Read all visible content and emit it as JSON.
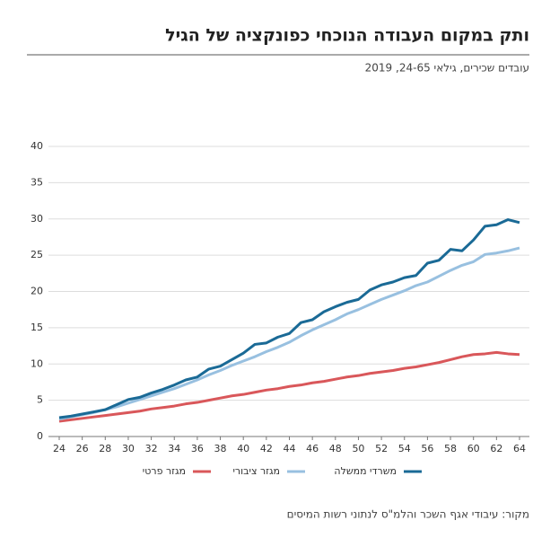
{
  "chart_data": {
    "type": "line",
    "title": "ותק במקום העבודה הנוכחי כפונקציה של הגיל",
    "subtitle": "עובדים שכירים, גילאי 24-65, 2019",
    "source": "מקור: עיבודי אגף השכר והלמ\"ס לנתוני רשות המיסים",
    "x": [
      24,
      25,
      26,
      27,
      28,
      29,
      30,
      31,
      32,
      33,
      34,
      35,
      36,
      37,
      38,
      39,
      40,
      41,
      42,
      43,
      44,
      45,
      46,
      47,
      48,
      49,
      50,
      51,
      52,
      53,
      54,
      55,
      56,
      57,
      58,
      59,
      60,
      61,
      62,
      63,
      64
    ],
    "series": [
      {
        "name": "משרדי ממשלה",
        "color": "#1a6a96",
        "values": [
          2.6,
          2.8,
          3.1,
          3.4,
          3.7,
          4.4,
          5.1,
          5.4,
          6.0,
          6.5,
          7.1,
          7.8,
          8.2,
          9.3,
          9.7,
          10.6,
          11.5,
          12.7,
          12.9,
          13.7,
          14.2,
          15.7,
          16.1,
          17.2,
          17.9,
          18.5,
          18.9,
          20.2,
          20.9,
          21.3,
          21.9,
          22.2,
          23.9,
          24.3,
          25.8,
          25.6,
          27.1,
          29.0,
          29.2,
          29.9,
          29.5
        ]
      },
      {
        "name": "מגזר ציבורי",
        "color": "#98c0e0",
        "values": [
          2.4,
          2.7,
          3.0,
          3.3,
          3.7,
          4.1,
          4.6,
          5.1,
          5.6,
          6.1,
          6.6,
          7.2,
          7.8,
          8.5,
          9.1,
          9.8,
          10.4,
          11.0,
          11.7,
          12.3,
          13.0,
          13.9,
          14.7,
          15.4,
          16.1,
          16.9,
          17.5,
          18.2,
          18.9,
          19.5,
          20.1,
          20.8,
          21.3,
          22.1,
          22.9,
          23.6,
          24.1,
          25.1,
          25.3,
          25.6,
          26.0
        ]
      },
      {
        "name": "מגזר פרטי",
        "color": "#d9575a",
        "values": [
          2.1,
          2.3,
          2.5,
          2.7,
          2.9,
          3.1,
          3.3,
          3.5,
          3.8,
          4.0,
          4.2,
          4.5,
          4.7,
          5.0,
          5.3,
          5.6,
          5.8,
          6.1,
          6.4,
          6.6,
          6.9,
          7.1,
          7.4,
          7.6,
          7.9,
          8.2,
          8.4,
          8.7,
          8.9,
          9.1,
          9.4,
          9.6,
          9.9,
          10.2,
          10.6,
          11.0,
          11.3,
          11.4,
          11.6,
          11.4,
          11.3
        ]
      }
    ],
    "xlim": [
      24,
      64
    ],
    "xticks": [
      24,
      26,
      28,
      30,
      32,
      34,
      36,
      38,
      40,
      42,
      44,
      46,
      48,
      50,
      52,
      54,
      56,
      58,
      60,
      62,
      64
    ],
    "ylim": [
      0,
      40
    ],
    "yticks": [
      0,
      5,
      10,
      15,
      20,
      25,
      30,
      35,
      40
    ],
    "grid": true
  }
}
